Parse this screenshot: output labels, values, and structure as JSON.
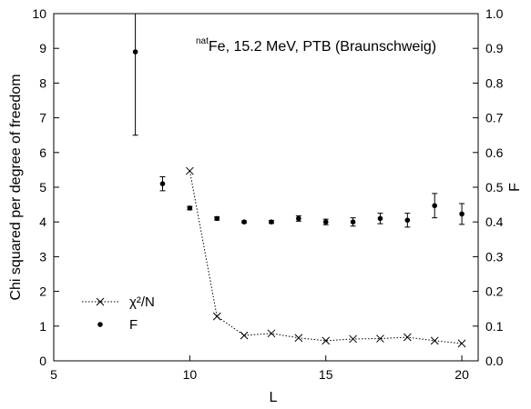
{
  "chart_data": {
    "type": "scatter",
    "annotation": {
      "superscript": "nat",
      "text": "Fe, 15.2 MeV, PTB (Braunschweig)"
    },
    "xlabel": "L",
    "ylabel": "Chi squared per degree of freedom",
    "y2label": "F",
    "xlim": [
      5,
      20.6
    ],
    "xticks": [
      5,
      10,
      15,
      20
    ],
    "ylim": [
      0,
      10
    ],
    "yticks": [
      0,
      1,
      2,
      3,
      4,
      5,
      6,
      7,
      8,
      9,
      10
    ],
    "y2lim": [
      0,
      1
    ],
    "y2ticks": [
      {
        "value": 0,
        "label": "0.0"
      },
      0.1,
      0.2,
      0.3,
      0.4,
      0.5,
      0.6,
      0.7,
      0.8,
      0.9,
      {
        "value": 1,
        "label": "1.0"
      }
    ],
    "series": [
      {
        "name": "χ²/N",
        "color": "#000000",
        "style": "dotted-line-cross",
        "x": [
          10,
          11,
          12,
          13,
          14,
          15,
          16,
          17,
          18,
          19,
          20
        ],
        "values": [
          5.47,
          1.28,
          0.73,
          0.79,
          0.66,
          0.58,
          0.63,
          0.64,
          0.68,
          0.58,
          0.5
        ]
      },
      {
        "name": "F",
        "color": "#000000",
        "style": "dot-errorbar",
        "axis": "y2",
        "x": [
          8,
          9,
          10,
          11,
          12,
          13,
          14,
          15,
          16,
          17,
          18,
          19,
          20
        ],
        "values": [
          0.89,
          0.51,
          0.44,
          0.41,
          0.4,
          0.4,
          0.41,
          0.4,
          0.4,
          0.41,
          0.405,
          0.447,
          0.423
        ],
        "errors": [
          0.24,
          0.02,
          0.005,
          0.005,
          0.003,
          0.004,
          0.008,
          0.008,
          0.012,
          0.015,
          0.02,
          0.035,
          0.03
        ]
      }
    ],
    "legend": "lower left"
  }
}
